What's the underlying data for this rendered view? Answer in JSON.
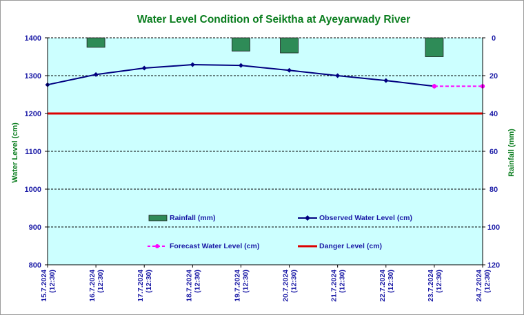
{
  "chart_data": {
    "type": "line",
    "title": "Water Level Condition of Seiktha at Ayeyarwady River",
    "ylabel": "Water Level (cm)",
    "y2label": "Rainfall (mm)",
    "ylim": [
      800,
      1400
    ],
    "y2lim": [
      0,
      120
    ],
    "y2_inverted": true,
    "yticks": [
      "800",
      "900",
      "1000",
      "1100",
      "1200",
      "1300",
      "1400"
    ],
    "y2ticks": [
      "0",
      "20",
      "40",
      "60",
      "80",
      "100",
      "120"
    ],
    "categories": [
      [
        "15.7.2024",
        "(12:30)"
      ],
      [
        "16.7.2024",
        "(12:30)"
      ],
      [
        "17.7.2024",
        "(12:30)"
      ],
      [
        "18.7.2024",
        "(12:30)"
      ],
      [
        "19.7.2024",
        "(12:30)"
      ],
      [
        "20.7.2024",
        "(12:30)"
      ],
      [
        "21.7.2024",
        "(12:30)"
      ],
      [
        "22.7.2024",
        "(12:30)"
      ],
      [
        "23.7.2024",
        "(12:30)"
      ],
      [
        "24.7.2024",
        "(12:30)"
      ]
    ],
    "grid": "horizontal",
    "background": "#ccffff",
    "series": [
      {
        "name": "Observed Water Level (cm)",
        "type": "line",
        "color": "#000080",
        "marker": "diamond",
        "values": [
          1276,
          1303,
          1320,
          1329,
          1327,
          1314,
          1300,
          1287,
          1272,
          null
        ]
      },
      {
        "name": "Forecast Water Level (cm)",
        "type": "line",
        "color": "#ff00ff",
        "dashed": true,
        "marker": "circle",
        "values": [
          null,
          null,
          null,
          null,
          null,
          null,
          null,
          null,
          1272,
          1272
        ]
      },
      {
        "name": "Danger Level (cm)",
        "type": "line",
        "color": "#dd0000",
        "values": [
          1200,
          1200,
          1200,
          1200,
          1200,
          1200,
          1200,
          1200,
          1200,
          1200
        ]
      },
      {
        "name": "Rainfall (mm)",
        "type": "bar",
        "axis": "right",
        "color": "#2e8b57",
        "values": [
          0,
          5,
          0,
          0,
          7,
          8,
          0,
          0,
          10,
          0
        ]
      }
    ],
    "legend": [
      "Rainfall (mm)",
      "Observed Water Level (cm)",
      "Forecast Water Level (cm)",
      "Danger Level (cm)"
    ]
  }
}
